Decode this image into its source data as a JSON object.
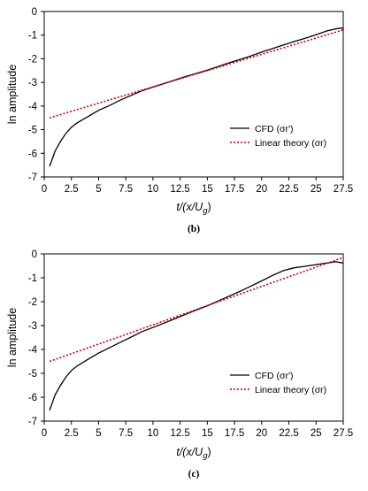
{
  "chart_data": [
    {
      "type": "line",
      "panel_label": "(b)",
      "xlabel": "t/(x/U_g)",
      "ylabel": "ln amplitude",
      "xlim": [
        0,
        27.5
      ],
      "ylim": [
        -7,
        0
      ],
      "xticks": [
        "0",
        "2.5",
        "5",
        "7.5",
        "10",
        "12.5",
        "15",
        "17.5",
        "20",
        "22.5",
        "25",
        "27.5"
      ],
      "yticks": [
        "0",
        "-1",
        "-2",
        "-3",
        "-4",
        "-5",
        "-6",
        "-7"
      ],
      "grid": false,
      "legend_position": "bottom-right",
      "series": [
        {
          "name": "CFD (σr')",
          "style": "solid",
          "color": "#000000",
          "x": [
            0.5,
            1.0,
            1.5,
            2.0,
            2.5,
            3.0,
            4.0,
            5.0,
            6.0,
            7.0,
            8.0,
            9.0,
            10.0,
            11.0,
            12.0,
            13.0,
            14.0,
            15.0,
            16.0,
            17.0,
            18.0,
            19.0,
            20.0,
            21.0,
            22.0,
            23.0,
            24.0,
            25.0,
            26.0,
            27.0,
            27.5
          ],
          "y": [
            -6.55,
            -5.9,
            -5.5,
            -5.15,
            -4.9,
            -4.72,
            -4.45,
            -4.18,
            -3.98,
            -3.75,
            -3.55,
            -3.35,
            -3.2,
            -3.05,
            -2.9,
            -2.75,
            -2.62,
            -2.48,
            -2.33,
            -2.17,
            -2.03,
            -1.88,
            -1.72,
            -1.57,
            -1.42,
            -1.27,
            -1.13,
            -0.98,
            -0.82,
            -0.72,
            -0.7
          ]
        },
        {
          "name": "Linear theory (σr)",
          "style": "dotted",
          "color": "#cc0000",
          "x": [
            0.5,
            27.5
          ],
          "y": [
            -4.5,
            -0.78
          ]
        }
      ]
    },
    {
      "type": "line",
      "panel_label": "(c)",
      "xlabel": "t/(x/U_g)",
      "ylabel": "ln amplitude",
      "xlim": [
        0,
        27.5
      ],
      "ylim": [
        -7,
        0
      ],
      "xticks": [
        "0",
        "2.5",
        "5",
        "7.5",
        "10",
        "12.5",
        "15",
        "17.5",
        "20",
        "22.5",
        "25",
        "27.5"
      ],
      "yticks": [
        "0",
        "-1",
        "-2",
        "-3",
        "-4",
        "-5",
        "-6",
        "-7"
      ],
      "grid": false,
      "legend_position": "bottom-right",
      "series": [
        {
          "name": "CFD (σr')",
          "style": "solid",
          "color": "#000000",
          "x": [
            0.5,
            1.0,
            1.5,
            2.0,
            2.5,
            3.0,
            4.0,
            5.0,
            6.0,
            7.0,
            8.0,
            9.0,
            10.0,
            11.0,
            12.0,
            13.0,
            14.0,
            15.0,
            16.0,
            17.0,
            18.0,
            19.0,
            20.0,
            21.0,
            22.0,
            23.0,
            24.0,
            25.0,
            26.0,
            26.8,
            27.5
          ],
          "y": [
            -6.55,
            -5.9,
            -5.5,
            -5.15,
            -4.88,
            -4.7,
            -4.42,
            -4.15,
            -3.93,
            -3.7,
            -3.48,
            -3.25,
            -3.08,
            -2.9,
            -2.72,
            -2.53,
            -2.35,
            -2.17,
            -1.97,
            -1.77,
            -1.57,
            -1.35,
            -1.13,
            -0.9,
            -0.7,
            -0.58,
            -0.52,
            -0.45,
            -0.38,
            -0.33,
            -0.38
          ]
        },
        {
          "name": "Linear theory (σr)",
          "style": "dotted",
          "color": "#cc0000",
          "x": [
            0.5,
            27.5
          ],
          "y": [
            -4.5,
            -0.15
          ]
        }
      ]
    }
  ]
}
